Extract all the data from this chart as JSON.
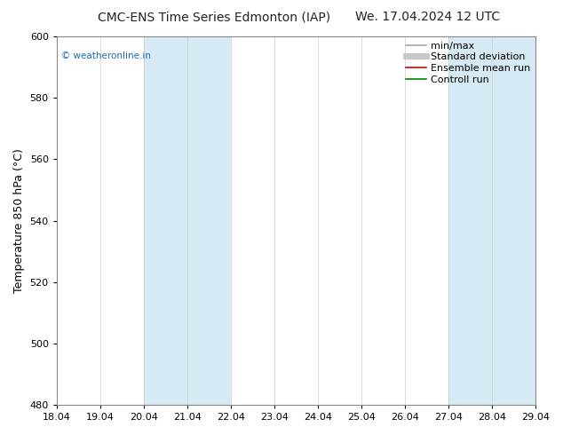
{
  "title_left": "CMC-ENS Time Series Edmonton (IAP)",
  "title_right": "We. 17.04.2024 12 UTC",
  "ylabel": "Temperature 850 hPa (°C)",
  "ylim": [
    480,
    600
  ],
  "yticks": [
    480,
    500,
    520,
    540,
    560,
    580,
    600
  ],
  "xtick_labels": [
    "18.04",
    "19.04",
    "20.04",
    "21.04",
    "22.04",
    "23.04",
    "24.04",
    "25.04",
    "26.04",
    "27.04",
    "28.04",
    "29.04"
  ],
  "shade_bands": [
    {
      "start": 2,
      "end": 4,
      "color": "#d6eaf5"
    },
    {
      "start": 9,
      "end": 11,
      "color": "#d6eaf5"
    }
  ],
  "watermark": "© weatheronline.in",
  "watermark_color": "#1a6cb5",
  "legend_items": [
    {
      "label": "min/max",
      "color": "#a8a8a8",
      "lw": 1.2
    },
    {
      "label": "Standard deviation",
      "color": "#c8c8c8",
      "lw": 5
    },
    {
      "label": "Ensemble mean run",
      "color": "#dd0000",
      "lw": 1.2
    },
    {
      "label": "Controll run",
      "color": "#008800",
      "lw": 1.2
    }
  ],
  "bg_color": "#ffffff",
  "spine_color": "#888888",
  "vline_color": "#cccccc",
  "title_fontsize": 10,
  "tick_fontsize": 8,
  "ylabel_fontsize": 9,
  "legend_fontsize": 8
}
